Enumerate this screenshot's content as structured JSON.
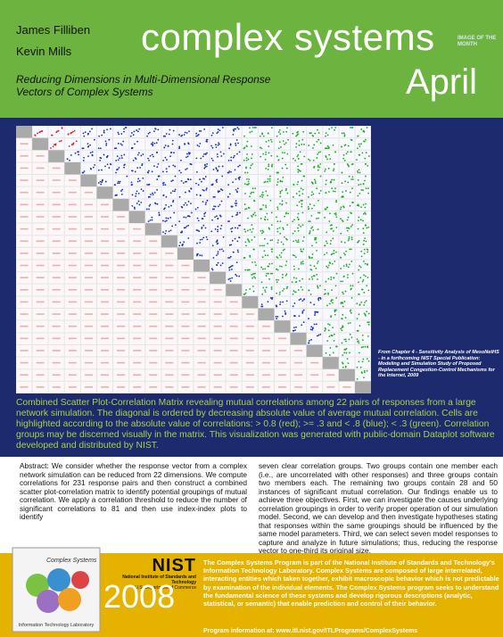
{
  "header": {
    "authors": [
      "James Filliben",
      "Kevin Mills"
    ],
    "subtitle": "Reducing Dimensions in Multi-Dimensional Response Vectors of Complex Systems",
    "brand": "complex systems",
    "badge": "IMAGE OF THE MONTH",
    "month": "April"
  },
  "figure": {
    "note": "From Chapter 4 - Sensitivity Analysis of MesoNetHS - in a forthcoming NIST Special Publication: Modeling and Simulation Study of Proposed Replacement Congestion-Control Mechanisms for the Internet, 2009",
    "caption": "Combined Scatter Plot-Correlation Matrix revealing mutual correlations among 22 pairs of responses from a large network simulation. The diagonal is ordered by decreasing absolute value of average mutual correlation. Cells are highlighted according to the absolute value of correlations: > 0.8 (red); >= .3 and < .8 (blue); < .3 (green). Correlation groups may be discerned visually in the matrix. This visualization was generated with public-domain Dataplot software developed and distributed by NIST."
  },
  "abstract": {
    "left": "Abstract: We consider whether the response vector from a complex network simulation can be reduced from 22 dimensions. We compute correlations for 231 response pairs and then construct a combined scatter plot-correlation matrix to identify potential groupings of mutual correlation. We apply a correlation threshold to reduce the number of significant correlations to 81 and then use index-index plots to identify",
    "right": "seven clear correlation groups. Two groups contain one member each (i.e., are uncorrelated with other responses) and three groups contain two members each. The remaining two groups contain 28 and 50 instances of significant mutual correlation. Our findings enable us to achieve three objectives. First, we can investigate the causes underlying correlation groupings in order to verify proper operation of our simulation model. Second, we can develop and then investigate hypotheses stating that responses within the same groupings should be influenced by the same model parameters. Third, we can select seven model responses to capture and analyze in future simulations; thus, reducing the response vector to one-third its original size."
  },
  "footer": {
    "logo_top": "Complex Systems",
    "logo_bottom": "Information Technology Laboratory",
    "nist": "NIST",
    "nist_name": "National Institute of Standards and Technology",
    "nist_dept": "U.S. Department of Commerce",
    "year": "2008",
    "program": "The Complex Systems Program is part of the National Institute of Standards and Technology's Information Technology Laboratory. Complex Systems are composed of large interrelated, interacting entities which taken together, exhibit macroscopic behavior which is not predictable by examination of the individual elements. The Complex Systems program seeks to understand the fundamental science of these systems and develop rigorous descriptions (analytic, statistical, or semantic) that enable prediction and control of their behavior.",
    "program_url": "Program information at:  www.itl.nist.gov/ITLPrograms/ComplexSystems"
  }
}
